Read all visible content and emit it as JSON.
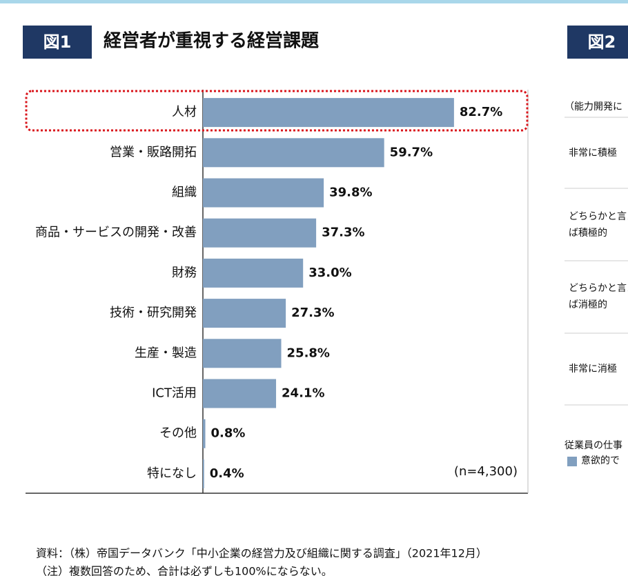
{
  "header": {
    "figure_label": "図1",
    "title": "経営者が重視する経営課題"
  },
  "chart_data": {
    "type": "bar",
    "orientation": "horizontal",
    "categories": [
      "人材",
      "営業・販路開拓",
      "組織",
      "商品・サービスの開発・改善",
      "財務",
      "技術・研究開発",
      "生産・製造",
      "ICT活用",
      "その他",
      "特になし"
    ],
    "values": [
      82.7,
      59.7,
      39.8,
      37.3,
      33.0,
      27.3,
      25.8,
      24.1,
      0.8,
      0.4
    ],
    "value_labels": [
      "82.7%",
      "59.7%",
      "39.8%",
      "37.3%",
      "33.0%",
      "27.3%",
      "25.8%",
      "24.1%",
      "0.8%",
      "0.4%"
    ],
    "color": "#819fbf",
    "xlim": [
      0,
      100
    ],
    "note": "(n=4,300)"
  },
  "side_panel": {
    "figure_label": "図2",
    "texts": [
      "（能力開発に",
      "非常に積極",
      "どちらかと言え",
      "ば積極的",
      "どちらかと言え",
      "ば消極的",
      "非常に消極",
      "従業員の仕事",
      "意欲的で"
    ]
  },
  "footer": {
    "source": "資料：（株）帝国データバンク「中小企業の経営力及び組織に関する調査」（2021年12月）",
    "note": "（注）複数回答のため、合計は必ずしも100%にならない。"
  }
}
